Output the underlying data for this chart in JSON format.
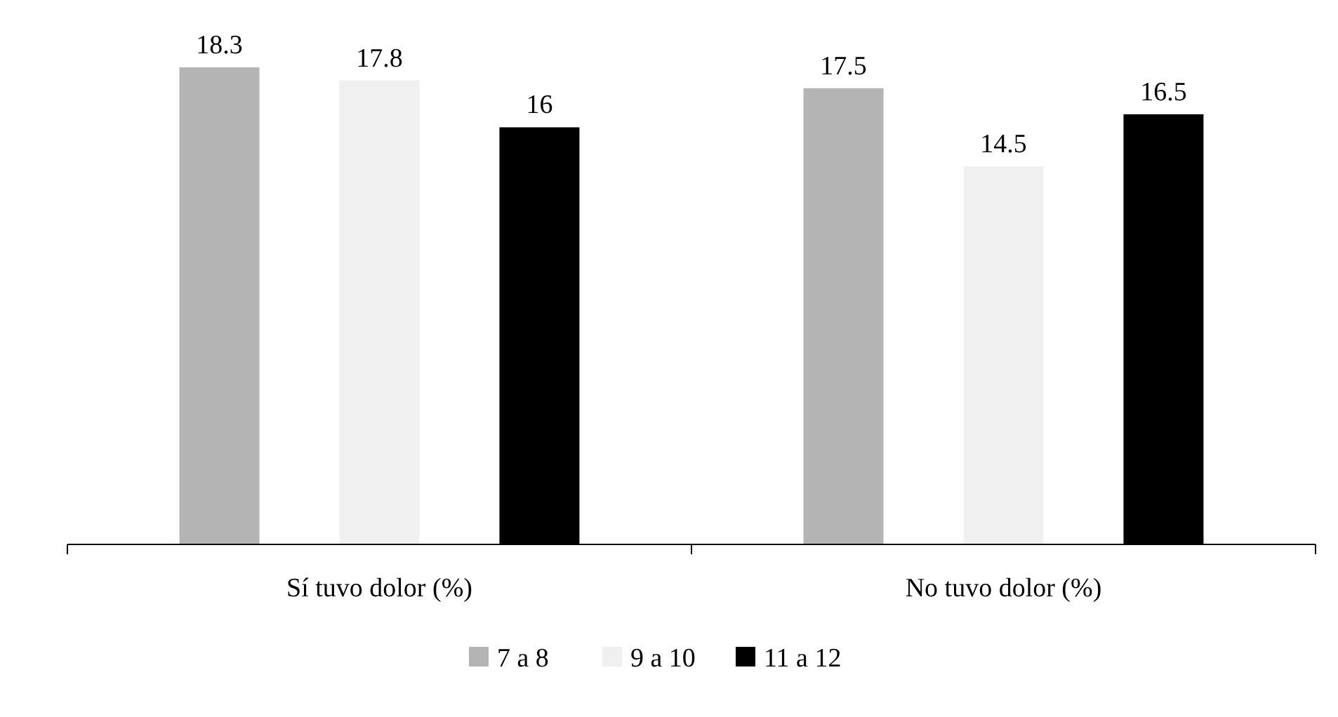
{
  "chart_data": {
    "type": "bar",
    "categories": [
      "Sí tuvo dolor (%)",
      "No tuvo dolor (%)"
    ],
    "series": [
      {
        "name": "7 a 8",
        "color": "#b4b4b4",
        "values": [
          18.3,
          17.5
        ]
      },
      {
        "name": "9 a 10",
        "color": "#f0f0f0",
        "values": [
          17.8,
          14.5
        ]
      },
      {
        "name": "11 a 12",
        "color": "#000000",
        "values": [
          16,
          16.5
        ]
      }
    ],
    "data_labels": true,
    "legend": "bottom"
  }
}
